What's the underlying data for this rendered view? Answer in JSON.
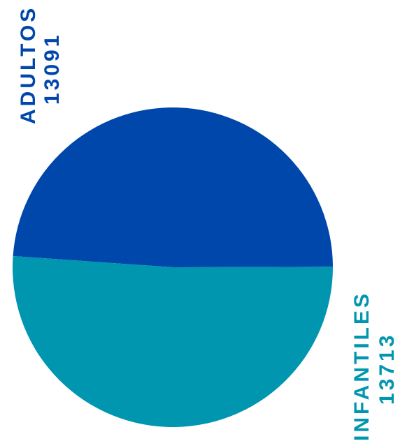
{
  "chart_data": {
    "type": "pie",
    "slices": [
      {
        "label": "ADULTOS",
        "value": 13091,
        "value_text": "13091",
        "color": "#0047AB"
      },
      {
        "label": "INFANTILES",
        "value": 13713,
        "value_text": "13713",
        "color": "#0096B0"
      }
    ],
    "title": "",
    "legend": "none"
  }
}
